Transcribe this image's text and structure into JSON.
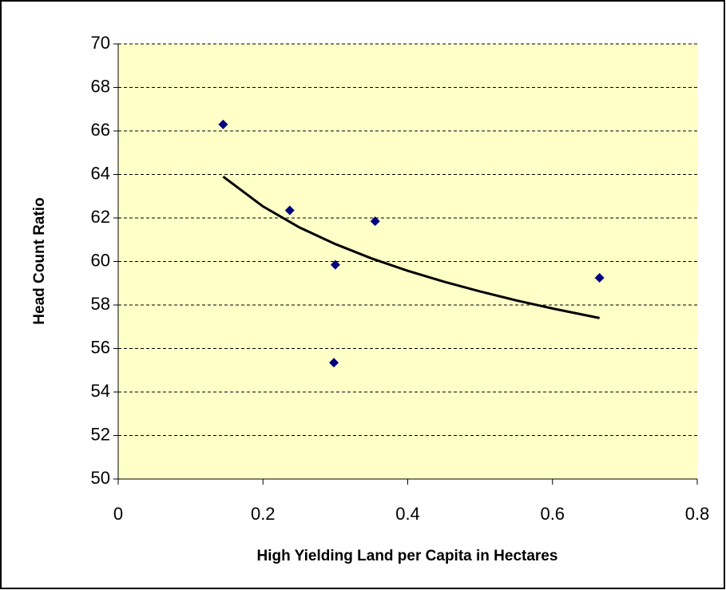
{
  "chart_data": {
    "type": "scatter",
    "x_label": "High Yielding Land per Capita in Hectares",
    "y_label": "Head Count Ratio",
    "series": [
      {
        "color": "#000080",
        "x": [
          0.145,
          0.237,
          0.3,
          0.298,
          0.355,
          0.665
        ],
        "values": [
          66.3,
          62.35,
          59.85,
          55.35,
          61.85,
          59.25
        ]
      }
    ],
    "trendline": {
      "color": "#000000",
      "x": [
        0.145,
        0.2,
        0.25,
        0.3,
        0.35,
        0.4,
        0.45,
        0.5,
        0.55,
        0.6,
        0.665
      ],
      "values": [
        63.9,
        62.53,
        61.57,
        60.8,
        60.14,
        59.57,
        59.07,
        58.62,
        58.21,
        57.84,
        57.4
      ]
    },
    "xlim": [
      0,
      0.8
    ],
    "xticks": [
      0,
      0.2,
      0.4,
      0.6,
      0.8
    ],
    "ylim": [
      50,
      70
    ],
    "yticks": [
      50,
      52,
      54,
      56,
      58,
      60,
      62,
      64,
      66,
      68,
      70
    ],
    "grid": true,
    "plot_background": "#FFFFC8"
  }
}
